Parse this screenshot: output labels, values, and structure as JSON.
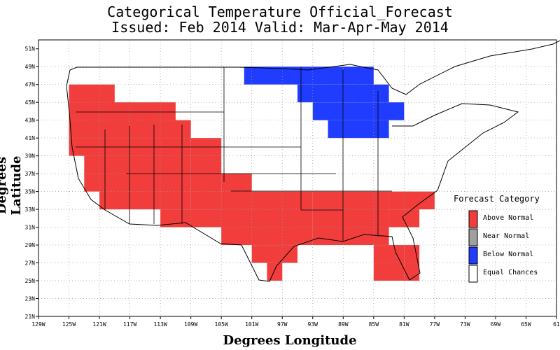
{
  "title": {
    "line1": "Categorical Temperature Official_Forecast",
    "line2": "Issued: Feb 2014 Valid: Mar-Apr-May 2014"
  },
  "axes": {
    "xlabel": "Degrees Longitude",
    "ylabel": "Degrees Latitude",
    "xticks": [
      "129W",
      "125W",
      "121W",
      "117W",
      "113W",
      "109W",
      "105W",
      "101W",
      "97W",
      "93W",
      "89W",
      "85W",
      "81W",
      "77W",
      "73W",
      "69W",
      "65W",
      "61"
    ],
    "yticks": [
      "51N",
      "49N",
      "47N",
      "45N",
      "43N",
      "41N",
      "39N",
      "37N",
      "35N",
      "33N",
      "31N",
      "29N",
      "27N",
      "25N",
      "23N",
      "21N"
    ],
    "xlim": [
      -129,
      -61
    ],
    "ylim": [
      21,
      52
    ],
    "grid": true
  },
  "legend": {
    "title": "Forecast Category",
    "items": [
      {
        "label": "Above Normal",
        "color": "#f23d3d"
      },
      {
        "label": "Near Normal",
        "color": "#a0a0a0"
      },
      {
        "label": "Below Normal",
        "color": "#1f3cff"
      },
      {
        "label": "Equal Chances",
        "color": "#ffffff"
      }
    ]
  },
  "chart_data": {
    "type": "heatmap",
    "regions": [
      {
        "category": "Above Normal",
        "lon_min": -125,
        "lon_max": -119,
        "lat_min": 39,
        "lat_max": 47
      },
      {
        "category": "Above Normal",
        "lon_min": -123,
        "lon_max": -111,
        "lat_min": 35,
        "lat_max": 45
      },
      {
        "category": "Above Normal",
        "lon_min": -121,
        "lon_max": -109,
        "lat_min": 33,
        "lat_max": 43
      },
      {
        "category": "Above Normal",
        "lon_min": -109,
        "lon_max": -105,
        "lat_min": 33,
        "lat_max": 41
      },
      {
        "category": "Above Normal",
        "lon_min": -105,
        "lon_max": -101,
        "lat_min": 33,
        "lat_max": 37
      },
      {
        "category": "Above Normal",
        "lon_min": -113,
        "lon_max": -101,
        "lat_min": 31,
        "lat_max": 33
      },
      {
        "category": "Above Normal",
        "lon_min": -105,
        "lon_max": -93,
        "lat_min": 29,
        "lat_max": 35
      },
      {
        "category": "Above Normal",
        "lon_min": -101,
        "lon_max": -95,
        "lat_min": 27,
        "lat_max": 29
      },
      {
        "category": "Above Normal",
        "lon_min": -99,
        "lon_max": -97,
        "lat_min": 25,
        "lat_max": 27
      },
      {
        "category": "Above Normal",
        "lon_min": -93,
        "lon_max": -83,
        "lat_min": 29,
        "lat_max": 35
      },
      {
        "category": "Above Normal",
        "lon_min": -83,
        "lon_max": -77,
        "lat_min": 33,
        "lat_max": 35
      },
      {
        "category": "Above Normal",
        "lon_min": -83,
        "lon_max": -79,
        "lat_min": 31,
        "lat_max": 33
      },
      {
        "category": "Above Normal",
        "lon_min": -85,
        "lon_max": -81,
        "lat_min": 25,
        "lat_max": 29
      },
      {
        "category": "Above Normal",
        "lon_min": -81,
        "lon_max": -79,
        "lat_min": 25,
        "lat_max": 29
      },
      {
        "category": "Below Normal",
        "lon_min": -102,
        "lon_max": -85,
        "lat_min": 47,
        "lat_max": 49
      },
      {
        "category": "Below Normal",
        "lon_min": -95,
        "lon_max": -83,
        "lat_min": 45,
        "lat_max": 47
      },
      {
        "category": "Below Normal",
        "lon_min": -93,
        "lon_max": -81,
        "lat_min": 43,
        "lat_max": 45
      },
      {
        "category": "Below Normal",
        "lon_min": -91,
        "lon_max": -83,
        "lat_min": 41,
        "lat_max": 43
      }
    ]
  }
}
